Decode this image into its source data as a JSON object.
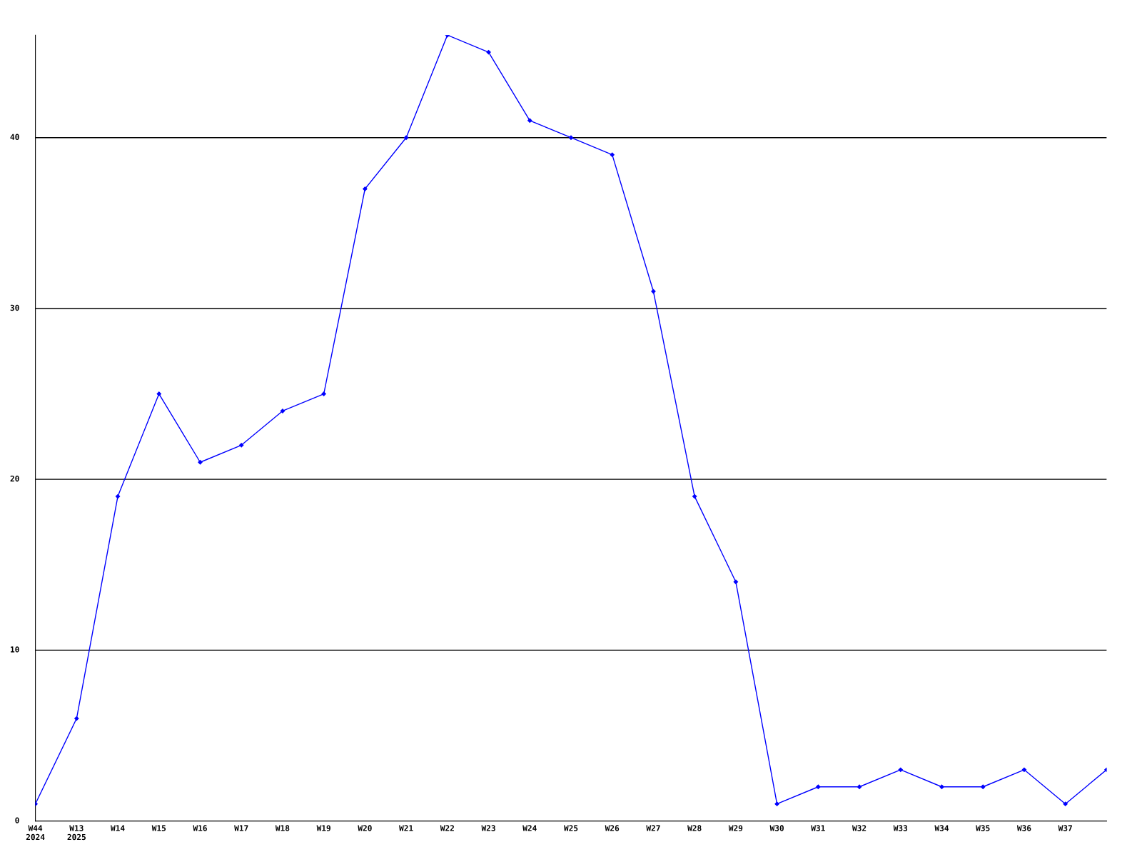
{
  "chart_data": {
    "type": "line",
    "categories": [
      "W44\n2024",
      "W13\n2025",
      "W14",
      "W15",
      "W16",
      "W17",
      "W18",
      "W19",
      "W20",
      "W21",
      "W22",
      "W23",
      "W24",
      "W25",
      "W26",
      "W27",
      "W28",
      "W29",
      "W30",
      "W31",
      "W32",
      "W33",
      "W34",
      "W35",
      "W36",
      "W37",
      null
    ],
    "series": [
      {
        "color": "#0000ff",
        "values": [
          1,
          6,
          19,
          25,
          21,
          22,
          24,
          25,
          37,
          40,
          46,
          45,
          41,
          40,
          39,
          31,
          19,
          14,
          1,
          2,
          2,
          3,
          2,
          2,
          3,
          1,
          3
        ]
      }
    ],
    "ylim": [
      0,
      46
    ],
    "yticks": [
      0,
      10,
      20,
      30,
      40
    ],
    "grid": "y",
    "marker": "diamond",
    "line_style": "solid"
  }
}
